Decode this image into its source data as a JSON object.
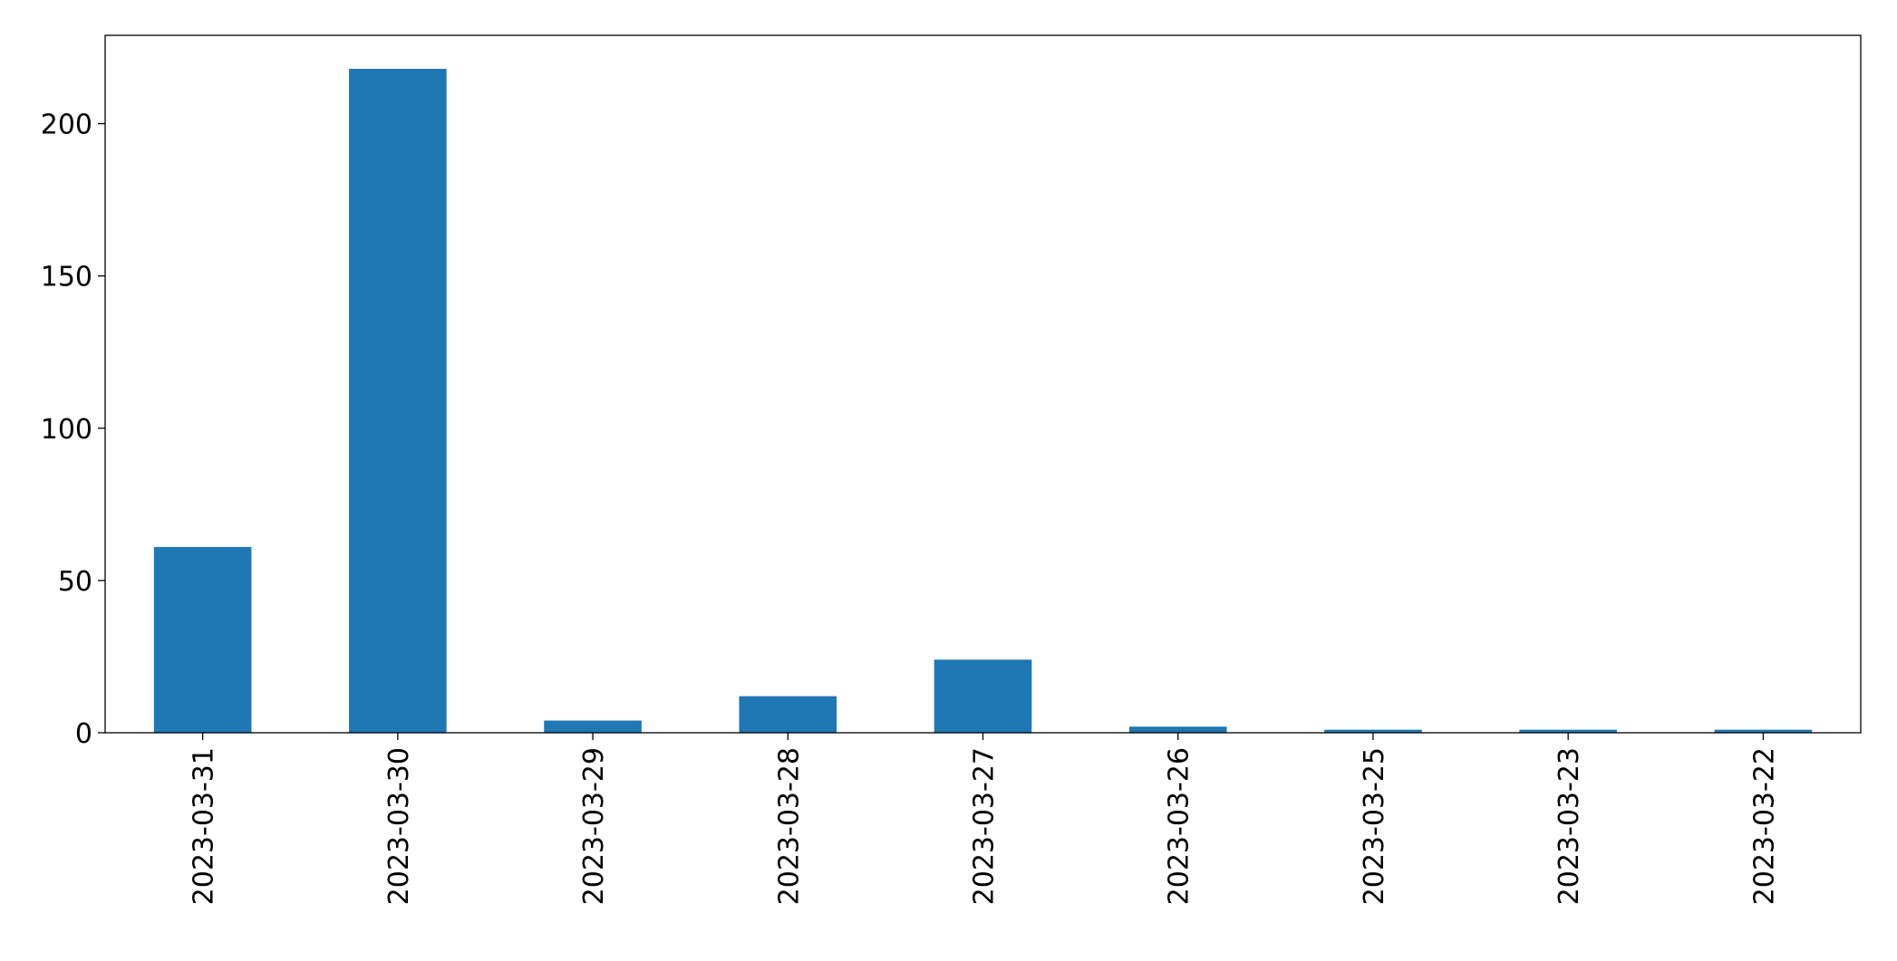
{
  "chart_data": {
    "type": "bar",
    "categories": [
      "2023-03-31",
      "2023-03-30",
      "2023-03-29",
      "2023-03-28",
      "2023-03-27",
      "2023-03-26",
      "2023-03-25",
      "2023-03-23",
      "2023-03-22"
    ],
    "values": [
      61,
      218,
      4,
      12,
      24,
      2,
      1,
      1,
      1
    ],
    "color": "#1f77b4",
    "ylim": [
      0,
      229
    ],
    "yticks": [
      0,
      50,
      100,
      150,
      200
    ],
    "grid": false
  }
}
